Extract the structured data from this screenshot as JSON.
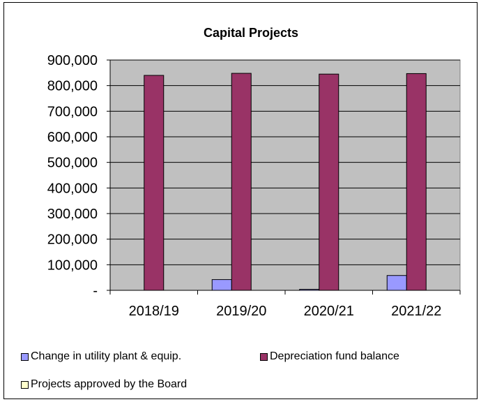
{
  "chart_data": {
    "type": "bar",
    "title": "Capital Projects",
    "categories": [
      "2018/19",
      "2019/20",
      "2020/21",
      "2021/22"
    ],
    "series": [
      {
        "name": "Change in utility plant & equip.",
        "color": "#9999ff",
        "values": [
          0,
          42000,
          4000,
          58000
        ]
      },
      {
        "name": "Depreciation fund balance",
        "color": "#993366",
        "values": [
          840000,
          848000,
          845000,
          847000
        ]
      },
      {
        "name": "Projects approved by the Board",
        "color": "#ffffcc",
        "values": [
          0,
          0,
          0,
          0
        ]
      }
    ],
    "y_ticks": [
      "-",
      "100,000",
      "200,000",
      "300,000",
      "400,000",
      "500,000",
      "600,000",
      "700,000",
      "800,000",
      "900,000"
    ],
    "ylim": [
      0,
      900000
    ],
    "grid": true,
    "plot_background": "#c0c0c0",
    "legend_position": "bottom"
  }
}
